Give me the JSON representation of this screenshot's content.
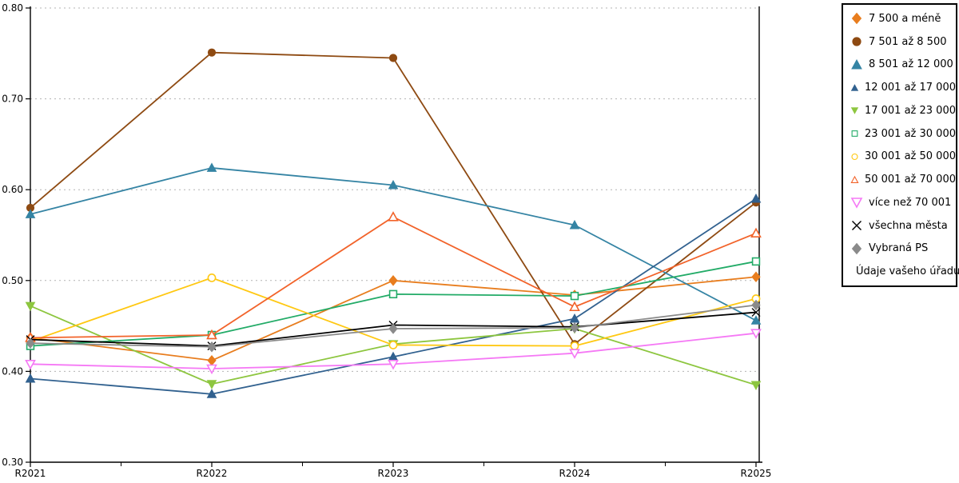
{
  "chart_data": {
    "type": "line",
    "title": "",
    "xlabel": "",
    "ylabel": "",
    "categories": [
      "R2021",
      "R2022",
      "R2023",
      "R2024",
      "R2025"
    ],
    "ylim": [
      0.3,
      0.8
    ],
    "ytick_labels": [
      "0.30",
      "0.40",
      "0.50",
      "0.60",
      "0.70",
      "0.80"
    ],
    "grid": "dashed horizontal at each 0.10",
    "legend_position": "right",
    "axis_color": "#000000",
    "grid_color": "#b3b3b3",
    "series": [
      {
        "name": "7 500 a méně",
        "color": "#e87d1e",
        "marker": "diamond",
        "fill": "solid",
        "values": [
          0.437,
          0.412,
          0.5,
          0.484,
          0.504
        ]
      },
      {
        "name": "7 501 až 8 500",
        "color": "#8e4a12",
        "marker": "circle",
        "fill": "solid",
        "values": [
          0.58,
          0.751,
          0.745,
          0.43,
          0.586
        ]
      },
      {
        "name": "8 501 až 12 000",
        "color": "#3584a4",
        "marker": "triangle-up",
        "fill": "solid",
        "values": [
          0.573,
          0.624,
          0.605,
          0.561,
          0.456
        ]
      },
      {
        "name": "12 001 až 17 000",
        "color": "#31618f",
        "marker": "triangle-up",
        "fill": "solid",
        "values": [
          0.392,
          0.375,
          0.416,
          0.458,
          0.59
        ]
      },
      {
        "name": "17 001 až 23 000",
        "color": "#8dc63f",
        "marker": "triangle-down",
        "fill": "solid",
        "values": [
          0.472,
          0.386,
          0.43,
          0.447,
          0.385
        ]
      },
      {
        "name": "23 001 až 30 000",
        "color": "#22ab67",
        "marker": "square",
        "fill": "open",
        "values": [
          0.428,
          0.44,
          0.485,
          0.483,
          0.521
        ]
      },
      {
        "name": "30 001 až 50 000",
        "color": "#ffc812",
        "marker": "circle",
        "fill": "open",
        "values": [
          0.433,
          0.503,
          0.429,
          0.428,
          0.48
        ]
      },
      {
        "name": "50 001 až 70 000",
        "color": "#f2632a",
        "marker": "triangle-up",
        "fill": "open",
        "values": [
          0.437,
          0.44,
          0.57,
          0.471,
          0.552
        ]
      },
      {
        "name": "více než 70 001",
        "color": "#f579f5",
        "marker": "triangle-down",
        "fill": "open",
        "values": [
          0.408,
          0.403,
          0.408,
          0.42,
          0.442
        ]
      },
      {
        "name": "všechna města",
        "color": "#000000",
        "marker": "x",
        "fill": "solid",
        "values": [
          0.435,
          0.428,
          0.451,
          0.449,
          0.465
        ]
      },
      {
        "name": "Vybraná PS",
        "color": "#8a8a8a",
        "marker": "diamond",
        "fill": "solid",
        "values": [
          0.431,
          0.427,
          0.447,
          0.448,
          0.473
        ]
      },
      {
        "name": "Údaje vašeho úřadu",
        "color": "#e60000",
        "marker": "circle",
        "fill": "solid",
        "values": [
          null,
          null,
          null,
          null,
          null
        ]
      }
    ]
  }
}
